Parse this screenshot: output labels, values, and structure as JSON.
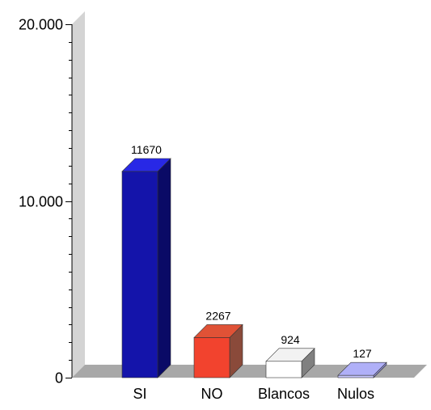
{
  "chart_data": {
    "type": "bar",
    "title": "",
    "xlabel": "",
    "ylabel": "",
    "ylim": [
      0,
      20000
    ],
    "y_ticks": [
      {
        "value": 0,
        "label": "0"
      },
      {
        "value": 10000,
        "label": "10.000"
      },
      {
        "value": 20000,
        "label": "20.000"
      }
    ],
    "minor_tick_step": 1000,
    "grid": false,
    "legend": "none",
    "style": "3d",
    "categories": [
      "SI",
      "NO",
      "Blancos",
      "Nulos"
    ],
    "values": [
      11670,
      2267,
      924,
      127
    ],
    "data_labels": [
      "11670",
      "2267",
      "924",
      "127"
    ],
    "colors": [
      {
        "front": "#1414AA",
        "top": "#2828E6",
        "side": "#0A0A66"
      },
      {
        "front": "#F2432E",
        "top": "#E05236",
        "side": "#8A4A3A"
      },
      {
        "front": "#FFFFFF",
        "top": "#F2F2F2",
        "side": "#808080"
      },
      {
        "front": "#C8C8FF",
        "top": "#B0B0F8",
        "side": "#8888CC"
      }
    ],
    "wall_color": "#D4D4D4",
    "floor_color": "#A8A8A8"
  }
}
